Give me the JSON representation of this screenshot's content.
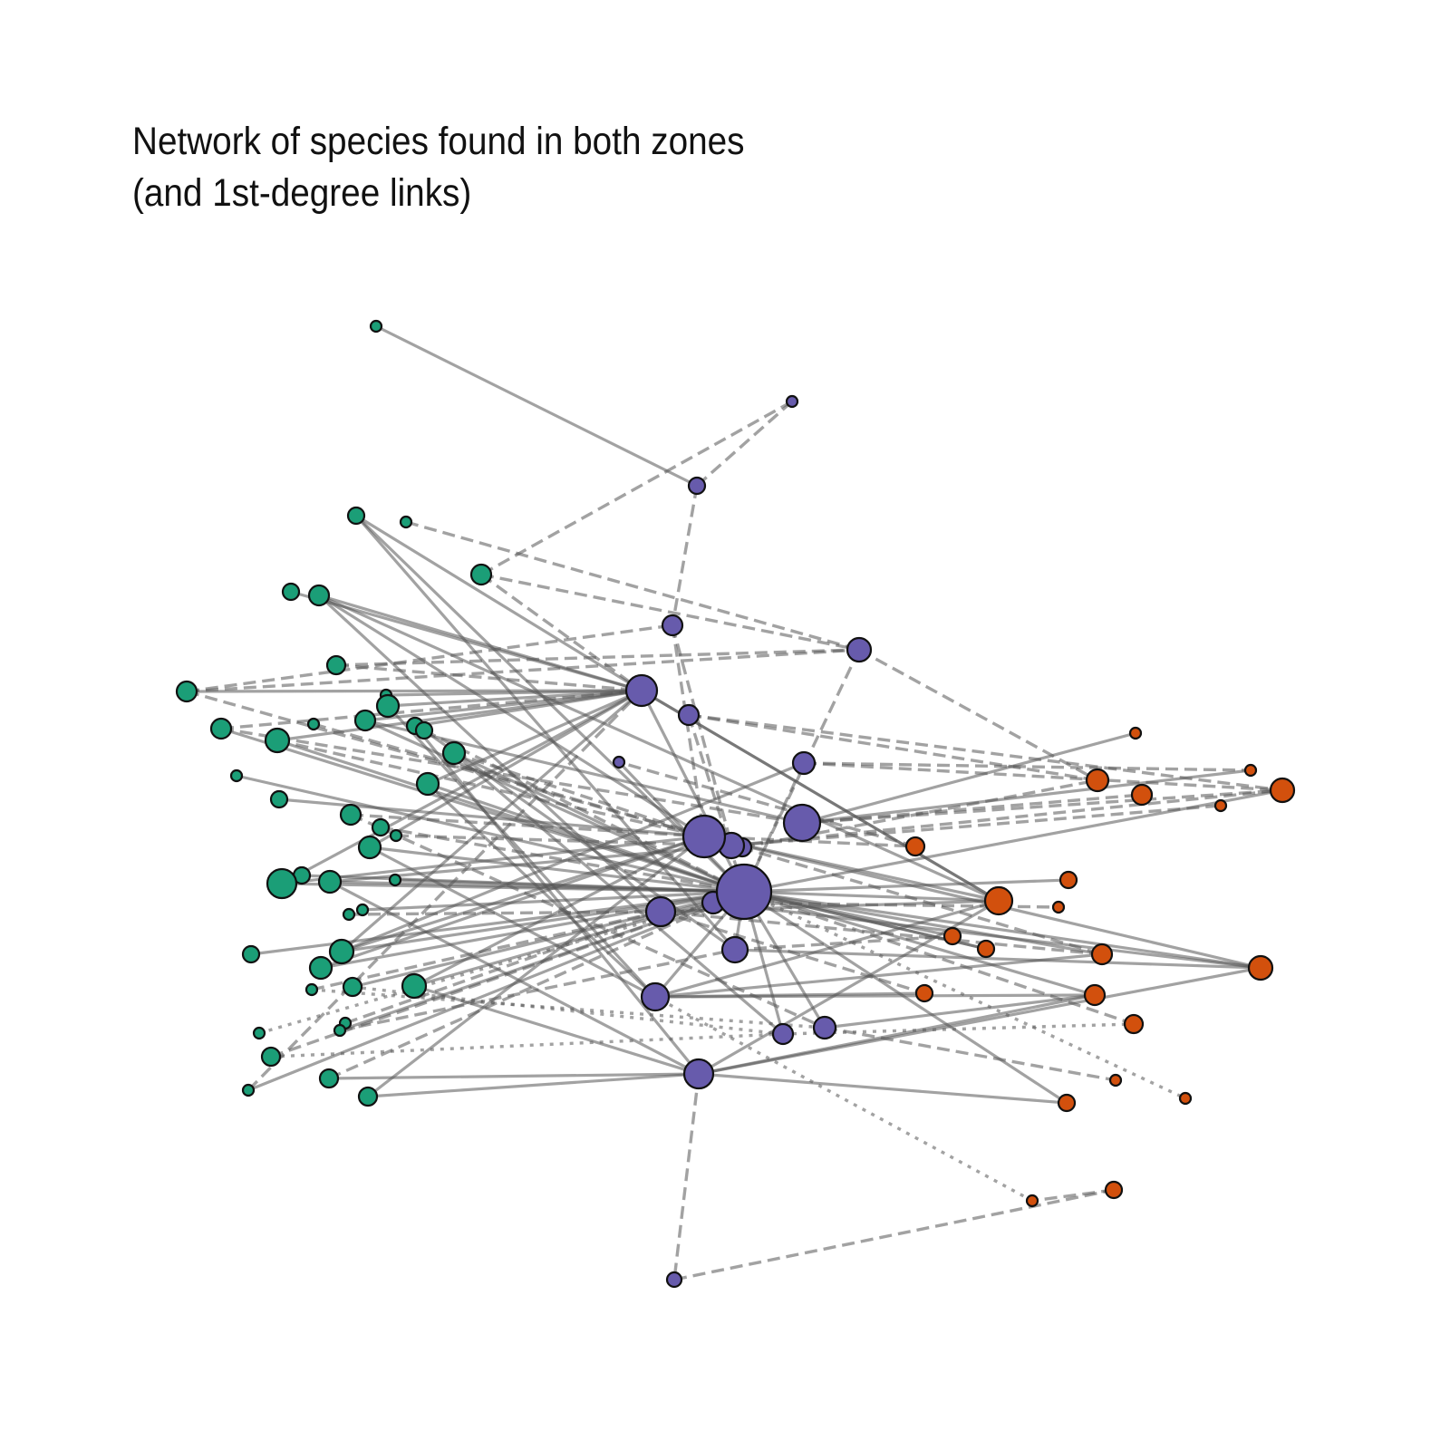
{
  "title_lines": [
    "Network of species found in both zones",
    "(and 1st-degree links)"
  ],
  "colors": {
    "group_green": "#1b9e77",
    "group_purple": "#675bac",
    "group_orange": "#d2500d",
    "edge": "#555555",
    "node_outline": "#111111"
  },
  "edge_styles": [
    "solid",
    "dashed",
    "dotted"
  ]
}
